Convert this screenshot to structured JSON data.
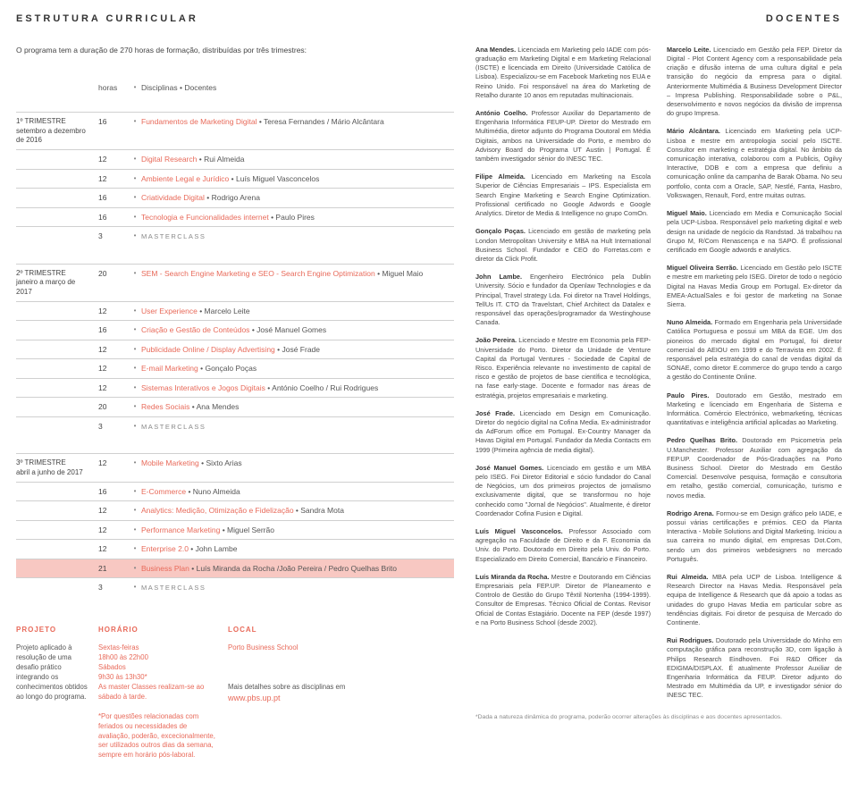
{
  "header": {
    "left": "ESTRUTURA CURRICULAR",
    "right": "DOCENTES"
  },
  "intro": "O programa tem a duração de 270 horas de formação, distribuídas por três trimestres:",
  "colors": {
    "accent": "#e86a5a",
    "highlight_bg": "#f8c8c2",
    "text": "#3a3a3a",
    "muted": "#888888",
    "rule": "#d0d0d0"
  },
  "table": {
    "columns": {
      "hours": "horas",
      "disciplines": "Disciplinas",
      "docentes": "Docentes"
    },
    "trimesters": [
      {
        "title": "1º TRIMESTRE",
        "sub": "setembro a dezembro de 2016",
        "rows": [
          {
            "h": "16",
            "d": "Fundamentos de Marketing Digital",
            "t": "Teresa Fernandes / Mário Alcântara"
          },
          {
            "h": "12",
            "d": "Digital Research",
            "t": "Rui Almeida"
          },
          {
            "h": "12",
            "d": "Ambiente Legal e Jurídico",
            "t": "Luís Miguel Vasconcelos"
          },
          {
            "h": "16",
            "d": "Criatividade Digital",
            "t": "Rodrigo Arena"
          },
          {
            "h": "16",
            "d": "Tecnologia e Funcionalidades internet",
            "t": "Paulo Pires"
          },
          {
            "h": "3",
            "master": true
          }
        ]
      },
      {
        "title": "2º TRIMESTRE",
        "sub": "janeiro a março de 2017",
        "rows": [
          {
            "h": "20",
            "d": "SEM - Search Engine Marketing e SEO - Search Engine Optimization",
            "t": "Miguel Maio"
          },
          {
            "h": "12",
            "d": "User Experience",
            "t": "Marcelo Leite"
          },
          {
            "h": "16",
            "d": "Criação e Gestão de Conteúdos",
            "t": "José Manuel Gomes"
          },
          {
            "h": "12",
            "d": "Publicidade Online / Display Advertising",
            "t": "José Frade"
          },
          {
            "h": "12",
            "d": "E-mail Marketing",
            "t": "Gonçalo Poças"
          },
          {
            "h": "12",
            "d": "Sistemas Interativos e Jogos Digitais",
            "t": "António Coelho / Rui Rodrigues"
          },
          {
            "h": "20",
            "d": "Redes Sociais",
            "t": "Ana Mendes"
          },
          {
            "h": "3",
            "master": true
          }
        ]
      },
      {
        "title": "3º TRIMESTRE",
        "sub": "abril a junho de 2017",
        "rows": [
          {
            "h": "12",
            "d": "Mobile Marketing",
            "t": "Sixto Arias"
          },
          {
            "h": "16",
            "d": "E-Commerce",
            "t": "Nuno Almeida"
          },
          {
            "h": "12",
            "d": "Analytics: Medição, Otimização e Fidelização",
            "t": "Sandra Mota"
          },
          {
            "h": "12",
            "d": "Performance Marketing",
            "t": "Miguel Serrão"
          },
          {
            "h": "12",
            "d": "Enterprise 2.0",
            "t": "John Lambe"
          },
          {
            "h": "21",
            "d": "Business Plan",
            "t": "Luís Miranda da Rocha /João Pereira / Pedro Quelhas Brito",
            "hl": true
          },
          {
            "h": "3",
            "master": true
          }
        ]
      }
    ],
    "master_label": "MASTERCLASS"
  },
  "footer": {
    "projeto": {
      "label": "PROJETO",
      "text": "Projeto aplicado à resolução de uma desafio prático integrando os conhecimentos obtidos ao longo do programa."
    },
    "horario": {
      "label": "HORÁRIO",
      "l1": "Sextas-feiras",
      "l2": "18h00 às 22h00",
      "l3": "Sábados",
      "l4": "9h30 às 13h30*",
      "l5": "As master Classes realizam-se ao sábado à tarde.",
      "note": "*Por questões relacionadas com feriados ou necessidades de avaliação, poderão, excecionalmente, ser utilizados outros dias da semana, sempre em horário pós-laboral."
    },
    "local": {
      "label": "LOCAL",
      "text": "Porto Business School",
      "more": "Mais detalhes sobre as disciplinas em",
      "link": "www.pbs.up.pt"
    }
  },
  "bios": [
    {
      "n": "Ana Mendes.",
      "b": "Licenciada em Marketing pelo IADE com pós-graduação em Marketing Digital e em Marketing Relacional (ISCTE) e licenciada em Direito (Universidade Católica de Lisboa). Especializou-se em Facebook Marketing nos EUA e Reino Unido. Foi responsável na área do Marketing de Retalho durante 10 anos em reputadas multinacionais."
    },
    {
      "n": "António Coelho.",
      "b": "Professor Auxiliar do Departamento de Engenharia Informática FEUP-UP. Diretor do Mestrado em Multimédia, diretor adjunto do Programa Doutoral em Média Digitais, ambos na Universidade do Porto, e membro do Advisory Board do Programa UT Austin | Portugal. É também investigador sénior do INESC TEC."
    },
    {
      "n": "Filipe Almeida.",
      "b": "Licenciado em Marketing na Escola Superior de Ciências Empresariais – IPS. Especialista em Search Engine Marketing e Search Engine Optimization. Profissional certificado no Google Adwords e Google Analytics. Diretor de Media & Intelligence no grupo ComOn."
    },
    {
      "n": "Gonçalo Poças.",
      "b": "Licenciado em gestão de marketing pela London Metropolitan University e MBA na Hult International Business School. Fundador e CEO do Forretas.com e diretor da Click Profit."
    },
    {
      "n": "John Lambe.",
      "b": "Engenheiro Electrónico pela Dublin University. Sócio e fundador da Openlaw Technologies e da Principal, Travel strategy Lda. Foi diretor na Travel Holdings, TellUs IT. CTO da Travelstart, Chief Architect da Datalex e responsável das operações/programador da Westinghouse Canada."
    },
    {
      "n": "João Pereira.",
      "b": "Licenciado e Mestre em Economia pela FEP-Universidade do Porto. Diretor da Unidade de Venture Capital da Portugal Ventures - Sociedade de Capital de Risco. Experiência relevante no investimento de capital de risco e gestão de projetos de base científica e tecnológica, na fase early-stage. Docente e formador nas áreas de estratégia, projetos empresariais e marketing."
    },
    {
      "n": "José Frade.",
      "b": "Licenciado em Design em Comunicação. Diretor do negócio digital na Cofina Media. Ex-administrador da AdForum office em Portugal. Ex-Country Manager da Havas Digital em Portugal. Fundador da Media Contacts em 1999 (Primeira agência de media digital)."
    },
    {
      "n": "José Manuel Gomes.",
      "b": "Licenciado em gestão e um MBA pelo ISEG. Foi Diretor Editorial e sócio fundador do Canal de Negócios, um dos primeiros projectos de jornalismo exclusivamente digital, que se transformou no hoje conhecido como \"Jornal de Negócios\". Atualmente, é diretor Coordenador Cofina Fusion e Digital."
    },
    {
      "n": "Luís Miguel Vasconcelos.",
      "b": "Professor Associado com agregação na Faculdade de Direito e da F. Economia da Univ. do Porto. Doutorado em Direito pela Univ. do Porto. Especializado em Direito Comercial, Bancário e Financeiro."
    },
    {
      "n": "Luís Miranda da Rocha.",
      "b": "Mestre e Doutorando em Ciências Empresariais pela FEP.UP. Diretor de Planeamento e Controlo de Gestão do Grupo Têxtil Nortenha (1994-1999). Consultor de Empresas. Técnico Oficial de Contas. Revisor Oficial de Contas Estagiário. Docente na FEP (desde 1997) e na Porto Business School (desde 2002)."
    },
    {
      "n": "Marcelo Leite.",
      "b": "Licenciado em Gestão pela FEP. Diretor da Digital - Plot Content Agency com a responsabilidade pela criação e difusão interna de uma cultura digital e pela transição do negócio da empresa para o digital. Anteriormente Multimédia & Business Development Director – Impresa Publishing. Responsabilidade sobre o P&L, desenvolvimento e novos negócios da divisão de imprensa do grupo Impresa."
    },
    {
      "n": "Mário Alcântara.",
      "b": "Licenciado em Marketing pela UCP-Lisboa e mestre em antropologia social pelo ISCTE. Consultor em marketing e estratégia digital. No âmbito da comunicação interativa, colaborou com a Publicis, Ogilvy Interactive, DDB e com a empresa que definiu a comunicação online da campanha de Barak Obama. No seu portfolio, conta com a Oracle, SAP, Nestlé, Fanta, Hasbro, Volkswagen, Renault, Ford, entre muitas outras."
    },
    {
      "n": "Miguel Maio.",
      "b": "Licenciado em Media e Comunicação Social pela UCP-Lisboa. Responsável pelo marketing digital e web design na unidade de negócio da Randstad. Já trabalhou na Grupo M, R/Com Renascença e na SAPO. É profissional certificado em Google adwords e analytics."
    },
    {
      "n": "Miguel Oliveira Serrão.",
      "b": "Licenciado em Gestão pelo ISCTE e mestre em marketing pelo ISEG. Diretor de todo o negócio Digital na Havas Media Group em Portugal. Ex-diretor da EMEA-ActualSales e foi gestor de marketing na Sonae Sierra."
    },
    {
      "n": "Nuno Almeida.",
      "b": "Formado em Engenharia pela Universidade Católica Portuguesa e possui um MBA da EGE. Um dos pioneiros do mercado digital em Portugal, foi diretor comercial do AEIOU em 1999 e do Terravista em 2002. É responsável pela estratégia do canal de vendas digital da SONAE, como diretor E.commerce do grupo tendo a cargo a gestão do Continente Online."
    },
    {
      "n": "Paulo Pires.",
      "b": "Doutorado em Gestão, mestrado em Marketing e licenciado em Engenharia de Sistema e Informática. Comércio Electrónico, webmarketing, técnicas quantitativas e inteligência artificial aplicadas ao Marketing."
    },
    {
      "n": "Pedro Quelhas Brito.",
      "b": "Doutorado em Psicometria pela U.Manchester. Professor Auxiliar com agregação da FEP.UP. Coordenador de Pós-Graduações na Porto Business School. Diretor do Mestrado em Gestão Comercial. Desenvolve pesquisa, formação e consultoria em retalho, gestão comercial, comunicação, turismo e novos media."
    },
    {
      "n": "Rodrigo Arena.",
      "b": "Formou-se em Design gráfico pelo IADE, e possui várias certificações e prémios. CEO da Planta Interactiva - Mobile Solutions and Digital Marketing. Iniciou a sua carreira no mundo digital, em empresas Dot.Com, sendo um dos primeiros webdesigners no mercado Português."
    },
    {
      "n": "Rui Almeida.",
      "b": "MBA pela UCP de Lisboa. Intelligence & Research Director na Havas Media. Responsável pela equipa de Intelligence & Research que dá apoio a todas as unidades do grupo Havas Media em particular sobre as tendências digitais. Foi diretor de pesquisa de Mercado do Continente."
    },
    {
      "n": "Rui Rodrigues.",
      "b": "Doutorado pela Universidade do Minho em computação gráfica para reconstrução 3D, com ligação à Philips Research Eindhoven. Foi R&D Officer da EDIGMA/DISPLAX. É atualmente Professor Auxiliar de Engenharia Informática da FEUP. Diretor adjunto do Mestrado em Multimédia da UP, e investigador sénior do INESC TEC."
    }
  ],
  "footnote": "*Dada a natureza dinâmica do programa, poderão ocorrer alterações às disciplinas e aos docentes apresentados."
}
